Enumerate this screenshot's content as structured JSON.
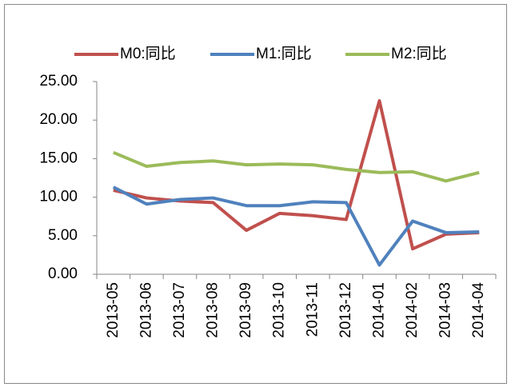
{
  "chart_data": {
    "type": "line",
    "categories": [
      "2013-05",
      "2013-06",
      "2013-07",
      "2013-08",
      "2013-09",
      "2013-10",
      "2013-11",
      "2013-12",
      "2014-01",
      "2014-02",
      "2014-03",
      "2014-04"
    ],
    "series": [
      {
        "name": "M0:同比",
        "color": "#c0504d",
        "values": [
          10.9,
          9.9,
          9.5,
          9.3,
          5.7,
          7.9,
          7.6,
          7.1,
          22.5,
          3.3,
          5.2,
          5.4
        ]
      },
      {
        "name": "M1:同比",
        "color": "#4f81bd",
        "values": [
          11.3,
          9.1,
          9.7,
          9.9,
          8.9,
          8.9,
          9.4,
          9.3,
          1.2,
          6.9,
          5.4,
          5.5
        ]
      },
      {
        "name": "M2:同比",
        "color": "#9bbb59",
        "values": [
          15.8,
          14.0,
          14.5,
          14.7,
          14.2,
          14.3,
          14.2,
          13.6,
          13.2,
          13.3,
          12.1,
          13.2
        ]
      }
    ],
    "ylim": [
      0,
      25
    ],
    "yticks": [
      {
        "value": 0,
        "label": "0.00"
      },
      {
        "value": 5,
        "label": "5.00"
      },
      {
        "value": 10,
        "label": "10.00"
      },
      {
        "value": 15,
        "label": "15.00"
      },
      {
        "value": 20,
        "label": "20.00"
      },
      {
        "value": 25,
        "label": "25.00"
      }
    ],
    "grid": false,
    "legend": "top"
  }
}
